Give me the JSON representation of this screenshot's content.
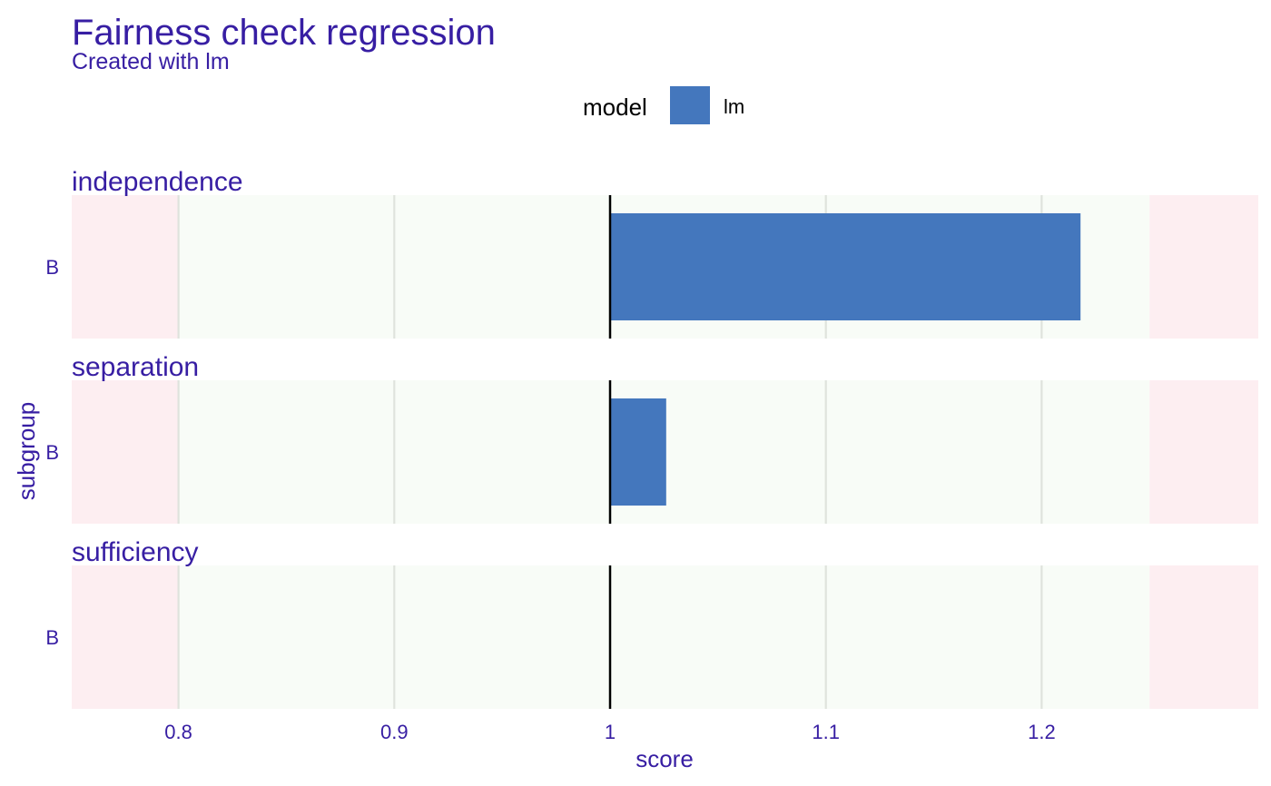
{
  "chart_data": {
    "type": "bar",
    "orientation": "horizontal",
    "title": "Fairness check regression",
    "subtitle": "Created with lm",
    "xlabel": "score",
    "ylabel": "subgroup",
    "xlim": [
      0.75,
      1.3
    ],
    "reference_value": 1,
    "fair_range": [
      0.8,
      1.25
    ],
    "xticks": [
      0.8,
      0.9,
      1,
      1.1,
      1.2
    ],
    "xtick_labels": [
      "0.8",
      "0.9",
      "1",
      "1.1",
      "1.2"
    ],
    "legend": {
      "title": "model",
      "placement": "top-center",
      "items": [
        {
          "name": "lm",
          "color": "#4477bd"
        }
      ]
    },
    "grid": true,
    "facets": [
      {
        "name": "independence",
        "categories": [
          "B"
        ],
        "series": [
          {
            "name": "lm",
            "values": [
              1.218
            ]
          }
        ]
      },
      {
        "name": "separation",
        "categories": [
          "B"
        ],
        "series": [
          {
            "name": "lm",
            "values": [
              1.026
            ]
          }
        ]
      },
      {
        "name": "sufficiency",
        "categories": [
          "B"
        ],
        "series": [
          {
            "name": "lm",
            "values": [
              1.0
            ]
          }
        ]
      }
    ]
  },
  "colors": {
    "text": "#371ea3",
    "bar": "#4477bd",
    "fair_zone": "#f8fcf7",
    "unfair_zone": "#fdeef1",
    "grid": "#dfe3dd",
    "reference_line": "#000000"
  }
}
